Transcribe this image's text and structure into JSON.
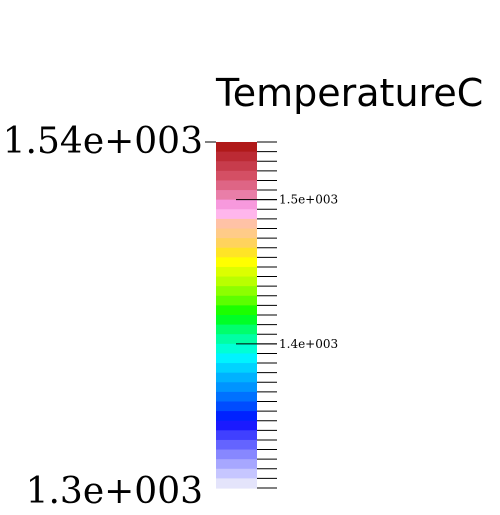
{
  "chart_data": {
    "type": "colorbar",
    "title": "TemperatureC",
    "range_labels": {
      "max": "1.54e+003",
      "min": "1.3e+003"
    },
    "range": [
      1300,
      1540
    ],
    "ticks": [
      {
        "value": 1500,
        "label": "1.5e+003"
      },
      {
        "value": 1400,
        "label": "1.4e+003"
      }
    ],
    "colors": [
      "#b01919",
      "#bc2a34",
      "#c73c4c",
      "#d44f64",
      "#de6585",
      "#e97ea8",
      "#f799dd",
      "#ffb6ec",
      "#ffc2a6",
      "#ffcb88",
      "#ffd35d",
      "#ffe426",
      "#ffff00",
      "#dcff00",
      "#b9ff00",
      "#8cff00",
      "#5cff00",
      "#1cff00",
      "#00ff26",
      "#00ff6c",
      "#00ffa4",
      "#00ffd6",
      "#00f3ff",
      "#00d3ff",
      "#00b2ff",
      "#0094ff",
      "#0071ff",
      "#004cff",
      "#0022ff",
      "#1a1aff",
      "#4040ff",
      "#6464ff",
      "#8787ff",
      "#a7a7ff",
      "#c6c6ff",
      "#e4e4fb"
    ]
  }
}
